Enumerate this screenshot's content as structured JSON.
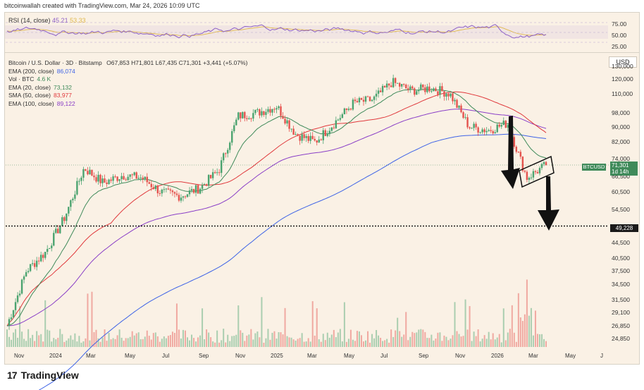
{
  "header": {
    "text": "bitcoinwallah created with TradingView.com, Mar 24, 2026 10:09 UTC"
  },
  "rsi": {
    "name": "RSI (14, close)",
    "value1": "45.21",
    "value2": "53.33",
    "ticks": [
      "75.00",
      "50.00",
      "25.00"
    ]
  },
  "legend": {
    "title": "Bitcoin / U.S. Dollar · 3D · Bitstamp",
    "ohlc": "O67,853  H71,801  L67,435  C71,301  +3,441 (+5.07%)",
    "rows": [
      {
        "label": "EMA (200, close)",
        "value": "86,074",
        "color": "#3e63e6"
      },
      {
        "label": "Vol · BTC",
        "value": "4.6 K",
        "color": "#3f8a5a"
      },
      {
        "label": "EMA (20, close)",
        "value": "73,132",
        "color": "#3f8a5a"
      },
      {
        "label": "SMA (50, close)",
        "value": "83,977",
        "color": "#e0393c"
      },
      {
        "label": "EMA (100, close)",
        "value": "89,122",
        "color": "#8a3fc7"
      }
    ]
  },
  "axis": {
    "currency": "USD",
    "ticks": [
      "130,000",
      "120,000",
      "110,000",
      "98,000",
      "90,000",
      "82,000",
      "74,000",
      "66,500",
      "60,500",
      "54,500",
      "49,228",
      "44,500",
      "40,500",
      "37,500",
      "34,500",
      "31,500",
      "29,100",
      "26,850",
      "24,850"
    ]
  },
  "badges": {
    "ticker": "BTCUSD",
    "price": "71,301",
    "countdown": "1d 14h",
    "level": "49,228"
  },
  "xaxis": {
    "labels": [
      "Nov",
      "2024",
      "Mar",
      "May",
      "Jul",
      "Sep",
      "Nov",
      "2025",
      "Mar",
      "May",
      "Jul",
      "Sep",
      "Nov",
      "2026",
      "Mar",
      "May",
      "J"
    ]
  },
  "footer": {
    "brand": "TradingView"
  },
  "colors": {
    "up": "#4aa36f",
    "down": "#e4534e",
    "ema200": "#3e63e6",
    "ema20": "#3f8a5a",
    "sma50": "#e0393c",
    "ema100": "#8a3fc7",
    "rsi": "#8d60c7",
    "rsiMa": "#e0b84a"
  },
  "chart_data": {
    "type": "candlestick",
    "symbol": "BTCUSD",
    "timeframe": "3D",
    "x_range": [
      "Nov 2023",
      "Jun 2026"
    ],
    "y_range": [
      24850,
      135000
    ],
    "y_scale": "log",
    "key_level": 49228,
    "last_close": 71301,
    "ema20_last": 73132,
    "sma50_last": 83977,
    "ema100_last": 89122,
    "ema200_last": 86074,
    "annotations": [
      "bear flag channel",
      "downward arrow to 49,228"
    ],
    "price_path": [
      {
        "x": "Nov 2023",
        "close": 26850
      },
      {
        "x": "Dec 2023",
        "close": 37500
      },
      {
        "x": "Jan 2024",
        "close": 42000
      },
      {
        "x": "Feb 2024",
        "close": 52000
      },
      {
        "x": "Mar 2024",
        "close": 70000
      },
      {
        "x": "Apr 2024",
        "close": 64000
      },
      {
        "x": "May 2024",
        "close": 67000
      },
      {
        "x": "Jun 2024",
        "close": 66000
      },
      {
        "x": "Jul 2024",
        "close": 60500
      },
      {
        "x": "Aug 2024",
        "close": 59000
      },
      {
        "x": "Sep 2024",
        "close": 62000
      },
      {
        "x": "Oct 2024",
        "close": 69000
      },
      {
        "x": "Nov 2024",
        "close": 96000
      },
      {
        "x": "Dec 2024",
        "close": 98000
      },
      {
        "x": "Jan 2025",
        "close": 102000
      },
      {
        "x": "Feb 2025",
        "close": 86000
      },
      {
        "x": "Mar 2025",
        "close": 82000
      },
      {
        "x": "Apr 2025",
        "close": 92000
      },
      {
        "x": "May 2025",
        "close": 104000
      },
      {
        "x": "Jun 2025",
        "close": 106000
      },
      {
        "x": "Jul 2025",
        "close": 118000
      },
      {
        "x": "Aug 2025",
        "close": 112000
      },
      {
        "x": "Sep 2025",
        "close": 114000
      },
      {
        "x": "Oct 2025",
        "close": 110000
      },
      {
        "x": "Nov 2025",
        "close": 90000
      },
      {
        "x": "Dec 2025",
        "close": 88000
      },
      {
        "x": "Jan 2026",
        "close": 92000
      },
      {
        "x": "Feb 2026",
        "close": 66000
      },
      {
        "x": "Mar 2026",
        "close": 71301
      }
    ]
  }
}
